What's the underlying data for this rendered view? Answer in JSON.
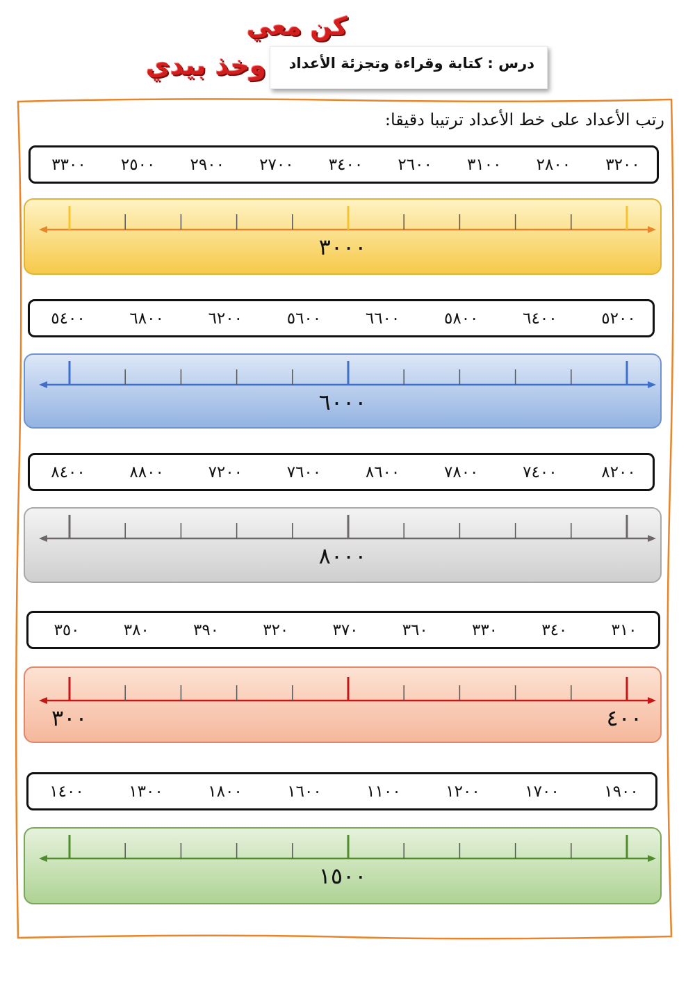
{
  "header": {
    "slogan_line1": "كن معي",
    "slogan_line2": "وخذ بيدي",
    "lesson_title": "درس : كتابة وقراءة وتجزئة الأعداد"
  },
  "instruction": "رتب الأعداد على خط الأعداد ترتيبا دقيقا:",
  "exercises": [
    {
      "numbers": [
        "٣٣٠٠",
        "٢٥٠٠",
        "٢٩٠٠",
        "٢٧٠٠",
        "٣٤٠٠",
        "٢٦٠٠",
        "٣١٠٠",
        "٢٨٠٠",
        "٣٢٠٠"
      ],
      "center_label": "٣٠٠٠",
      "colors": {
        "top": "#fff3c4",
        "bottom": "#f6c94a",
        "border": "#e0b33a",
        "line": "#e8852a",
        "major": "#f4c430"
      }
    },
    {
      "numbers": [
        "٥٤٠٠",
        "٦٨٠٠",
        "٦٢٠٠",
        "٥٦٠٠",
        "٦٦٠٠",
        "٥٨٠٠",
        "٦٤٠٠",
        "٥٢٠٠"
      ],
      "center_label": "٦٠٠٠",
      "colors": {
        "top": "#dde7f7",
        "bottom": "#93b3e2",
        "border": "#6f93cf",
        "line": "#3f6fc9",
        "major": "#3f6fc9"
      }
    },
    {
      "numbers": [
        "٨٤٠٠",
        "٨٨٠٠",
        "٧٢٠٠",
        "٧٦٠٠",
        "٨٦٠٠",
        "٧٨٠٠",
        "٧٤٠٠",
        "٨٢٠٠"
      ],
      "center_label": "٨٠٠٠",
      "colors": {
        "top": "#f3f3f3",
        "bottom": "#cfcfcf",
        "border": "#a9a9a9",
        "line": "#6d6767",
        "major": "#6d6767"
      }
    },
    {
      "numbers": [
        "٣٥٠",
        "٣٨٠",
        "٣٩٠",
        "٣٢٠",
        "٣٧٠",
        "٣٦٠",
        "٣٣٠",
        "٣٤٠",
        "٣١٠"
      ],
      "left_label": "٣٠٠",
      "right_label": "٤٠٠",
      "colors": {
        "top": "#fde2d3",
        "bottom": "#f5b89c",
        "border": "#e0886b",
        "line": "#c21818",
        "major": "#c21818"
      }
    },
    {
      "numbers": [
        "١٤٠٠",
        "١٣٠٠",
        "١٨٠٠",
        "١٦٠٠",
        "١١٠٠",
        "١٢٠٠",
        "١٧٠٠",
        "١٩٠٠"
      ],
      "center_label": "١٥٠٠",
      "colors": {
        "top": "#e6f2dc",
        "bottom": "#aed394",
        "border": "#7aa85a",
        "line": "#4f8a2c",
        "major": "#4f8a2c"
      }
    }
  ]
}
